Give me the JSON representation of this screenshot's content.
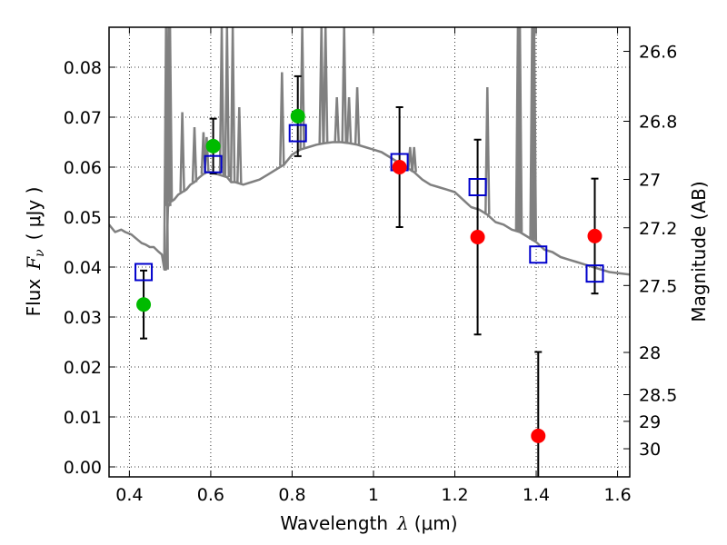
{
  "chart_data": {
    "type": "scatter",
    "xlabel": "Wavelength",
    "xlabel_symbol": "λ",
    "xlabel_unit": "(μm)",
    "ylabel": "Flux",
    "ylabel_symbol": "F",
    "ylabel_subscript": "ν",
    "ylabel_unit": "( μJy )",
    "y2label": "Magnitude (AB)",
    "xlim": [
      0.35,
      1.63
    ],
    "ylim": [
      -0.002,
      0.088
    ],
    "grid": true,
    "x_ticks": [
      0.4,
      0.6,
      0.8,
      1,
      1.2,
      1.4,
      1.6
    ],
    "x_tick_labels": [
      "0.4",
      "0.6",
      "0.8",
      "1",
      "1.2",
      "1.4",
      "1.6"
    ],
    "y_ticks": [
      0.0,
      0.01,
      0.02,
      0.03,
      0.04,
      0.05,
      0.06,
      0.07,
      0.08
    ],
    "y_tick_labels": [
      "0.00",
      "0.01",
      "0.02",
      "0.03",
      "0.04",
      "0.05",
      "0.06",
      "0.07",
      "0.08"
    ],
    "mag_ticks": [
      26.6,
      26.8,
      27,
      27.2,
      27.5,
      28,
      28.5,
      29,
      30
    ],
    "mag_tick_labels": [
      "26.6",
      "26.8",
      "27",
      "27.2",
      "27.5",
      "28",
      "28.5",
      "29",
      "30"
    ],
    "colors": {
      "green": "#00bb00",
      "red": "#ff0000",
      "model_box": "#0000cc",
      "spectrum": "#808080"
    },
    "series": [
      {
        "marker": "green-circle",
        "points": [
          {
            "x": 0.435,
            "y": 0.0325,
            "err": 0.0068
          },
          {
            "x": 0.606,
            "y": 0.0642,
            "err": 0.0055
          },
          {
            "x": 0.814,
            "y": 0.0702,
            "err": 0.008
          }
        ]
      },
      {
        "marker": "red-circle",
        "points": [
          {
            "x": 1.064,
            "y": 0.06,
            "err": 0.012
          },
          {
            "x": 1.256,
            "y": 0.046,
            "err": 0.0195
          },
          {
            "x": 1.405,
            "y": 0.0062,
            "err": 0.0168
          },
          {
            "x": 1.544,
            "y": 0.0462,
            "err": 0.0115
          }
        ]
      },
      {
        "marker": "blue-square",
        "points": [
          {
            "x": 0.435,
            "y": 0.039
          },
          {
            "x": 0.606,
            "y": 0.0606
          },
          {
            "x": 0.814,
            "y": 0.0668
          },
          {
            "x": 1.064,
            "y": 0.061
          },
          {
            "x": 1.256,
            "y": 0.056
          },
          {
            "x": 1.405,
            "y": 0.0425
          },
          {
            "x": 1.544,
            "y": 0.0387
          }
        ]
      },
      {
        "marker": "gray-line",
        "x": [
          0.35,
          0.365,
          0.38,
          0.39,
          0.405,
          0.42,
          0.43,
          0.44,
          0.45,
          0.46,
          0.47,
          0.48,
          0.484,
          0.486,
          0.49,
          0.495,
          0.5,
          0.51,
          0.52,
          0.53,
          0.54,
          0.55,
          0.56,
          0.57,
          0.58,
          0.59,
          0.6,
          0.62,
          0.64,
          0.65,
          0.66,
          0.68,
          0.7,
          0.72,
          0.74,
          0.76,
          0.78,
          0.8,
          0.82,
          0.84,
          0.86,
          0.88,
          0.9,
          0.92,
          0.94,
          0.96,
          0.98,
          1.0,
          1.02,
          1.04,
          1.06,
          1.08,
          1.1,
          1.12,
          1.14,
          1.16,
          1.18,
          1.2,
          1.22,
          1.24,
          1.26,
          1.28,
          1.3,
          1.32,
          1.34,
          1.36,
          1.38,
          1.4,
          1.42,
          1.44,
          1.46,
          1.48,
          1.5,
          1.52,
          1.54,
          1.56,
          1.58,
          1.6,
          1.63
        ],
        "y": [
          0.0485,
          0.047,
          0.0475,
          0.047,
          0.0465,
          0.0455,
          0.0448,
          0.0445,
          0.044,
          0.044,
          0.0432,
          0.0425,
          0.0405,
          0.0395,
          0.0395,
          0.052,
          0.053,
          0.0535,
          0.0545,
          0.055,
          0.0555,
          0.0565,
          0.057,
          0.0578,
          0.0585,
          0.059,
          0.059,
          0.0585,
          0.058,
          0.057,
          0.057,
          0.0565,
          0.057,
          0.0575,
          0.0585,
          0.0595,
          0.0605,
          0.0625,
          0.0635,
          0.064,
          0.0645,
          0.0648,
          0.065,
          0.065,
          0.0648,
          0.0645,
          0.064,
          0.0635,
          0.063,
          0.062,
          0.061,
          0.06,
          0.059,
          0.0575,
          0.0565,
          0.056,
          0.0555,
          0.055,
          0.0535,
          0.052,
          0.0515,
          0.0505,
          0.049,
          0.0485,
          0.0475,
          0.047,
          0.046,
          0.045,
          0.0435,
          0.043,
          0.042,
          0.0415,
          0.041,
          0.0405,
          0.04,
          0.0395,
          0.039,
          0.0388,
          0.0385
        ]
      },
      {
        "marker": "gray-emission-lines",
        "lines": [
          {
            "x": 0.49,
            "top": 0.088
          },
          {
            "x": 0.496,
            "top": 0.088
          },
          {
            "x": 0.5,
            "top": 0.088
          },
          {
            "x": 0.53,
            "top": 0.071
          },
          {
            "x": 0.56,
            "top": 0.068
          },
          {
            "x": 0.582,
            "top": 0.067
          },
          {
            "x": 0.59,
            "top": 0.066
          },
          {
            "x": 0.627,
            "top": 0.088
          },
          {
            "x": 0.64,
            "top": 0.088
          },
          {
            "x": 0.654,
            "top": 0.088
          },
          {
            "x": 0.67,
            "top": 0.072
          },
          {
            "x": 0.775,
            "top": 0.079
          },
          {
            "x": 0.825,
            "top": 0.088
          },
          {
            "x": 0.872,
            "top": 0.088
          },
          {
            "x": 0.882,
            "top": 0.088
          },
          {
            "x": 0.91,
            "top": 0.074
          },
          {
            "x": 0.928,
            "top": 0.088
          },
          {
            "x": 0.94,
            "top": 0.074
          },
          {
            "x": 0.96,
            "top": 0.076
          },
          {
            "x": 1.09,
            "top": 0.064
          },
          {
            "x": 1.1,
            "top": 0.064
          },
          {
            "x": 1.28,
            "top": 0.076
          },
          {
            "x": 1.355,
            "top": 0.088
          },
          {
            "x": 1.36,
            "top": 0.088
          },
          {
            "x": 1.39,
            "top": 0.088
          },
          {
            "x": 1.395,
            "top": 0.088
          }
        ]
      }
    ]
  }
}
